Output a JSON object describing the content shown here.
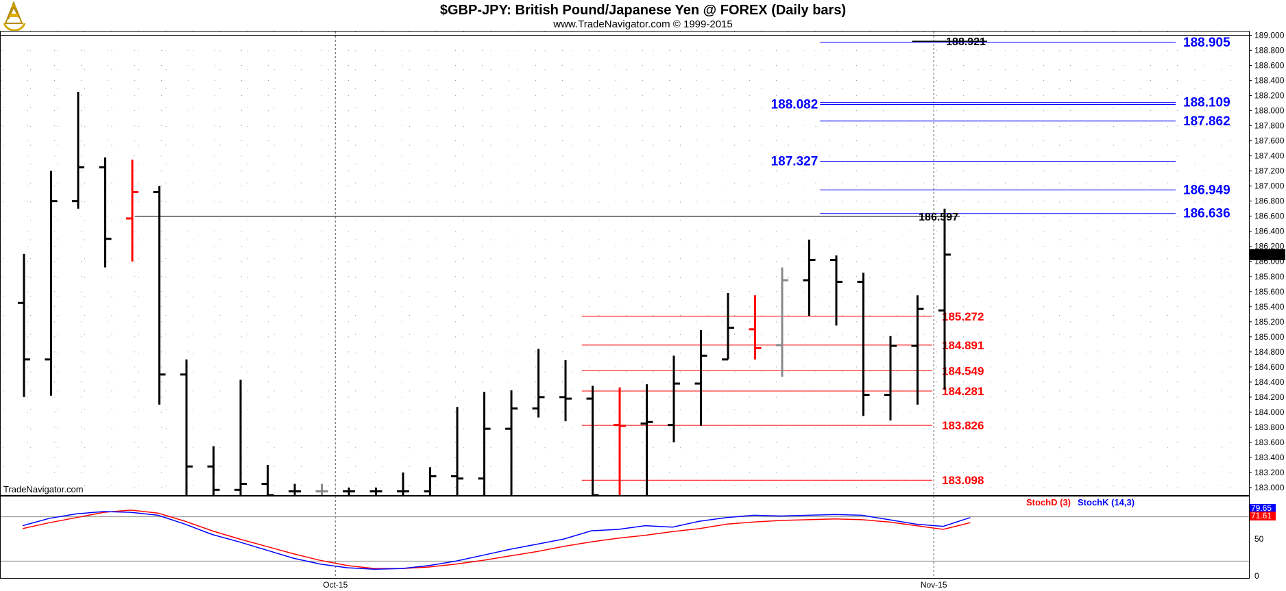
{
  "header": {
    "title": "$GBP-JPY:  British Pound/Japanese Yen @ FOREX  (Daily bars)",
    "subtitle": "www.TradeNavigator.com © 1999-2015",
    "watermark": "TradeNavigator.com",
    "logo_icon": "sextant-logo-icon"
  },
  "colors": {
    "bar": "#000000",
    "bar_red": "#ff0000",
    "bar_gray": "#888888",
    "fib_blue": "#0000ff",
    "fib_red": "#ff0000",
    "stoch_d": "#ff0000",
    "stoch_k": "#0000ff",
    "grid": "#999999"
  },
  "chart_data": [
    {
      "type": "ohlc",
      "name": "price",
      "ylim": [
        182.9,
        189.05
      ],
      "yticks": [
        183.0,
        183.2,
        183.4,
        183.6,
        183.8,
        184.0,
        184.2,
        184.4,
        184.6,
        184.8,
        185.0,
        185.2,
        185.4,
        185.6,
        185.8,
        186.0,
        186.2,
        186.4,
        186.6,
        186.8,
        187.0,
        187.2,
        187.4,
        187.6,
        187.8,
        188.0,
        188.2,
        188.4,
        188.6,
        188.8,
        189.0
      ],
      "ytick_labels": [
        "183.000",
        "183.200",
        "183.400",
        "183.600",
        "183.800",
        "184.000",
        "184.200",
        "184.400",
        "184.600",
        "184.800",
        "185.000",
        "185.200",
        "185.400",
        "185.600",
        "185.800",
        "186.000",
        "186.200",
        "186.400",
        "186.600",
        "186.800",
        "187.000",
        "187.200",
        "187.400",
        "187.600",
        "187.800",
        "188.000",
        "188.200",
        "188.400",
        "188.600",
        "188.800",
        "189.000"
      ],
      "x_labels": [
        {
          "label": "Oct-15",
          "index": 11.5
        },
        {
          "label": "Nov-15",
          "index": 33.6
        }
      ],
      "bars": [
        {
          "o": 185.45,
          "h": 186.1,
          "l": 184.2,
          "c": 184.7
        },
        {
          "o": 184.7,
          "h": 187.2,
          "l": 184.22,
          "c": 186.8
        },
        {
          "o": 186.8,
          "h": 188.25,
          "l": 186.7,
          "c": 187.25
        },
        {
          "o": 187.25,
          "h": 187.38,
          "l": 185.92,
          "c": 186.3
        },
        {
          "o": 186.57,
          "h": 187.35,
          "l": 186.0,
          "c": 186.92,
          "color": "red"
        },
        {
          "o": 186.92,
          "h": 187.0,
          "l": 184.1,
          "c": 184.5
        },
        {
          "o": 184.5,
          "h": 184.7,
          "l": 182.9,
          "c": 183.28
        },
        {
          "o": 183.28,
          "h": 183.55,
          "l": 182.9,
          "c": 182.97
        },
        {
          "o": 182.97,
          "h": 184.43,
          "l": 182.9,
          "c": 183.05
        },
        {
          "o": 183.05,
          "h": 183.3,
          "l": 182.9,
          "c": 182.9
        },
        {
          "o": 182.95,
          "h": 183.05,
          "l": 182.9,
          "c": 182.95
        },
        {
          "o": 182.95,
          "h": 183.05,
          "l": 182.9,
          "c": 182.95,
          "color": "gray"
        },
        {
          "o": 182.95,
          "h": 183.0,
          "l": 182.9,
          "c": 182.95
        },
        {
          "o": 182.95,
          "h": 183.0,
          "l": 182.9,
          "c": 182.95
        },
        {
          "o": 182.95,
          "h": 183.2,
          "l": 182.9,
          "c": 182.95
        },
        {
          "o": 182.95,
          "h": 183.27,
          "l": 182.9,
          "c": 183.15
        },
        {
          "o": 183.15,
          "h": 184.07,
          "l": 182.9,
          "c": 183.12
        },
        {
          "o": 183.12,
          "h": 184.27,
          "l": 182.9,
          "c": 183.78
        },
        {
          "o": 183.78,
          "h": 184.29,
          "l": 182.9,
          "c": 184.05
        },
        {
          "o": 184.05,
          "h": 184.84,
          "l": 183.93,
          "c": 184.2
        },
        {
          "o": 184.2,
          "h": 184.69,
          "l": 183.88,
          "c": 184.18
        },
        {
          "o": 184.18,
          "h": 184.35,
          "l": 182.9,
          "c": 182.9
        },
        {
          "o": 183.83,
          "h": 184.33,
          "l": 182.9,
          "c": 183.82,
          "color": "red"
        },
        {
          "o": 183.85,
          "h": 184.37,
          "l": 182.9,
          "c": 183.87
        },
        {
          "o": 183.83,
          "h": 184.75,
          "l": 183.6,
          "c": 184.38
        },
        {
          "o": 184.38,
          "h": 185.09,
          "l": 183.82,
          "c": 184.75
        },
        {
          "o": 184.7,
          "h": 185.58,
          "l": 184.7,
          "c": 185.12
        },
        {
          "o": 185.1,
          "h": 185.55,
          "l": 184.7,
          "c": 184.85,
          "color": "red"
        },
        {
          "o": 184.89,
          "h": 185.92,
          "l": 184.47,
          "c": 185.75,
          "color": "gray"
        },
        {
          "o": 185.75,
          "h": 186.29,
          "l": 185.28,
          "c": 186.02
        },
        {
          "o": 186.02,
          "h": 186.08,
          "l": 185.15,
          "c": 185.73
        },
        {
          "o": 185.73,
          "h": 185.85,
          "l": 183.95,
          "c": 184.23
        },
        {
          "o": 184.23,
          "h": 185.01,
          "l": 183.89,
          "c": 184.88
        },
        {
          "o": 184.88,
          "h": 185.55,
          "l": 184.1,
          "c": 185.37
        },
        {
          "o": 185.35,
          "h": 186.7,
          "l": 184.3,
          "c": 186.09
        }
      ],
      "last_price": "186.090",
      "levels": [
        {
          "value": 188.921,
          "label": "188.921",
          "color": "black",
          "x_from": 32.8,
          "label_side": "left"
        },
        {
          "value": 188.905,
          "label": "188.905",
          "color": "blue",
          "x_from": 29.4,
          "label_side": "right"
        },
        {
          "value": 188.109,
          "label": "188.109",
          "color": "blue",
          "x_from": 29.4,
          "label_side": "right"
        },
        {
          "value": 188.082,
          "label": "188.082",
          "color": "blue",
          "x_from": 29.4,
          "label_side": "left"
        },
        {
          "value": 187.862,
          "label": "187.862",
          "color": "blue",
          "x_from": 29.4,
          "label_side": "right"
        },
        {
          "value": 187.327,
          "label": "187.327",
          "color": "blue",
          "x_from": 29.4,
          "label_side": "left"
        },
        {
          "value": 186.949,
          "label": "186.949",
          "color": "blue",
          "x_from": 29.4,
          "label_side": "right"
        },
        {
          "value": 186.636,
          "label": "186.636",
          "color": "blue",
          "x_from": 29.4,
          "label_side": "right"
        },
        {
          "value": 186.597,
          "label": "186.597",
          "color": "black",
          "x_from": 4.1,
          "label_side": "left"
        },
        {
          "value": 185.272,
          "label": "185.272",
          "color": "red",
          "x_from": 20.6,
          "label_side": "right"
        },
        {
          "value": 184.891,
          "label": "184.891",
          "color": "red",
          "x_from": 20.6,
          "label_side": "right"
        },
        {
          "value": 184.549,
          "label": "184.549",
          "color": "red",
          "x_from": 20.6,
          "label_side": "right"
        },
        {
          "value": 184.281,
          "label": "184.281",
          "color": "red",
          "x_from": 20.6,
          "label_side": "right"
        },
        {
          "value": 183.826,
          "label": "183.826",
          "color": "red",
          "x_from": 20.6,
          "label_side": "right"
        },
        {
          "value": 183.098,
          "label": "183.098",
          "color": "red",
          "x_from": 20.6,
          "label_side": "right"
        }
      ]
    },
    {
      "type": "line",
      "name": "stochastic",
      "ylim": [
        0,
        100
      ],
      "yticks": [
        0,
        50
      ],
      "ytick_labels": [
        "0",
        "50"
      ],
      "ref_lines": [
        80,
        20
      ],
      "legend": [
        {
          "label": "StochD (3)",
          "color": "red"
        },
        {
          "label": "StochK (14,3)",
          "color": "blue"
        }
      ],
      "series": [
        {
          "name": "StochD (3)",
          "color": "red",
          "values": [
            64,
            72,
            79,
            86,
            89,
            85,
            74,
            61,
            50,
            40,
            30,
            21,
            14,
            10,
            10,
            12,
            16,
            21,
            27,
            33,
            40,
            46,
            51,
            55,
            60,
            64,
            70,
            73,
            75,
            76,
            77,
            76,
            73,
            68,
            63,
            72
          ]
        },
        {
          "name": "StochK (14,3)",
          "color": "blue",
          "values": [
            68,
            78,
            84,
            87,
            86,
            82,
            70,
            56,
            46,
            35,
            24,
            16,
            11,
            9,
            10,
            14,
            20,
            28,
            36,
            43,
            50,
            61,
            63,
            68,
            66,
            74,
            79,
            82,
            81,
            82,
            83,
            82,
            76,
            70,
            67,
            79
          ]
        }
      ],
      "value_tags": [
        {
          "label": "79.65",
          "color": "blue"
        },
        {
          "label": "71.61",
          "color": "red"
        }
      ]
    }
  ]
}
